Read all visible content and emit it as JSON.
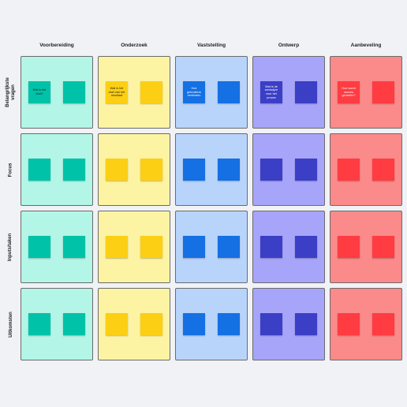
{
  "columns": [
    {
      "title": "Voorbereiding",
      "cell_color": "#b3f5e6",
      "note_color": "#00c2a8"
    },
    {
      "title": "Onderzoek",
      "cell_color": "#fdf4a3",
      "note_color": "#fccf14"
    },
    {
      "title": "Vaststelling",
      "cell_color": "#b8d4fb",
      "note_color": "#1470e3"
    },
    {
      "title": "Ontwerp",
      "cell_color": "#a7a5f9",
      "note_color": "#3b3fc6"
    },
    {
      "title": "Aanbeveling",
      "cell_color": "#fb8a8a",
      "note_color": "#ff3c42"
    }
  ],
  "rows": [
    {
      "title": "Belangrijkste\nvragen"
    },
    {
      "title": "Focus"
    },
    {
      "title": "Inputs/taken"
    },
    {
      "title": "Uitkomsten"
    }
  ],
  "question_notes": [
    {
      "text": "Wat is het doel?",
      "text_color": "#1a1a1a"
    },
    {
      "text": "Wat is het doel van het resultaat",
      "text_color": "#1a1a1a"
    },
    {
      "text": "Hoe gebruikers verbinden",
      "text_color": "#ffffff"
    },
    {
      "text": "Wat is de werkwijze voor het proces",
      "text_color": "#ffffff"
    },
    {
      "text": "Hoe wordt succes gemeten?",
      "text_color": "#ffffff"
    }
  ]
}
